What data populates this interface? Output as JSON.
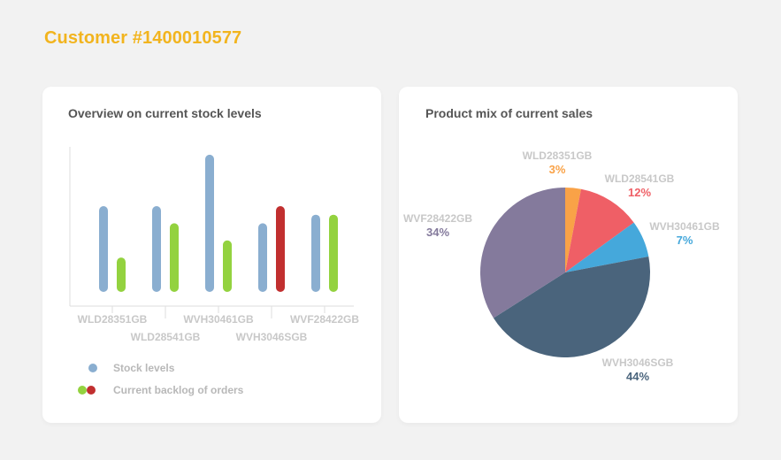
{
  "header": {
    "title": "Customer #1400010577"
  },
  "bar_card": {
    "title": "Overview on current stock levels"
  },
  "pie_card": {
    "title": "Product mix of current sales"
  },
  "legend": {
    "stock": "Stock levels",
    "backlog": "Current backlog of orders"
  },
  "colors": {
    "stock": "#8aaed0",
    "backlog": "#93d23f",
    "backlog_alert": "#c12f2f",
    "title": "#f2b41e"
  },
  "chart_data": [
    {
      "type": "bar",
      "categories": [
        "WLD28351GB",
        "WLD28541GB",
        "WVH30461GB",
        "WVH3046SGB",
        "WVF28422GB"
      ],
      "series": [
        {
          "name": "Stock levels",
          "values": [
            48,
            48,
            78,
            38,
            43
          ]
        },
        {
          "name": "Current backlog of orders",
          "values": [
            18,
            38,
            28,
            48,
            43
          ]
        }
      ],
      "alert_points": [
        {
          "series": 1,
          "index": 3,
          "color": "#c12f2f"
        }
      ],
      "ylim": [
        0,
        80
      ],
      "grid": false
    },
    {
      "type": "pie",
      "slices": [
        {
          "label": "WLD28351GB",
          "value": 3,
          "display": "3%",
          "color": "#f9a247"
        },
        {
          "label": "WLD28541GB",
          "value": 12,
          "display": "12%",
          "color": "#ef5f66"
        },
        {
          "label": "WVH30461GB",
          "value": 7,
          "display": "7%",
          "color": "#45a8db"
        },
        {
          "label": "WVH3046SGB",
          "value": 44,
          "display": "44%",
          "color": "#4a647c"
        },
        {
          "label": "WVF28422GB",
          "value": 34,
          "display": "34%",
          "color": "#847a9c"
        }
      ]
    }
  ]
}
